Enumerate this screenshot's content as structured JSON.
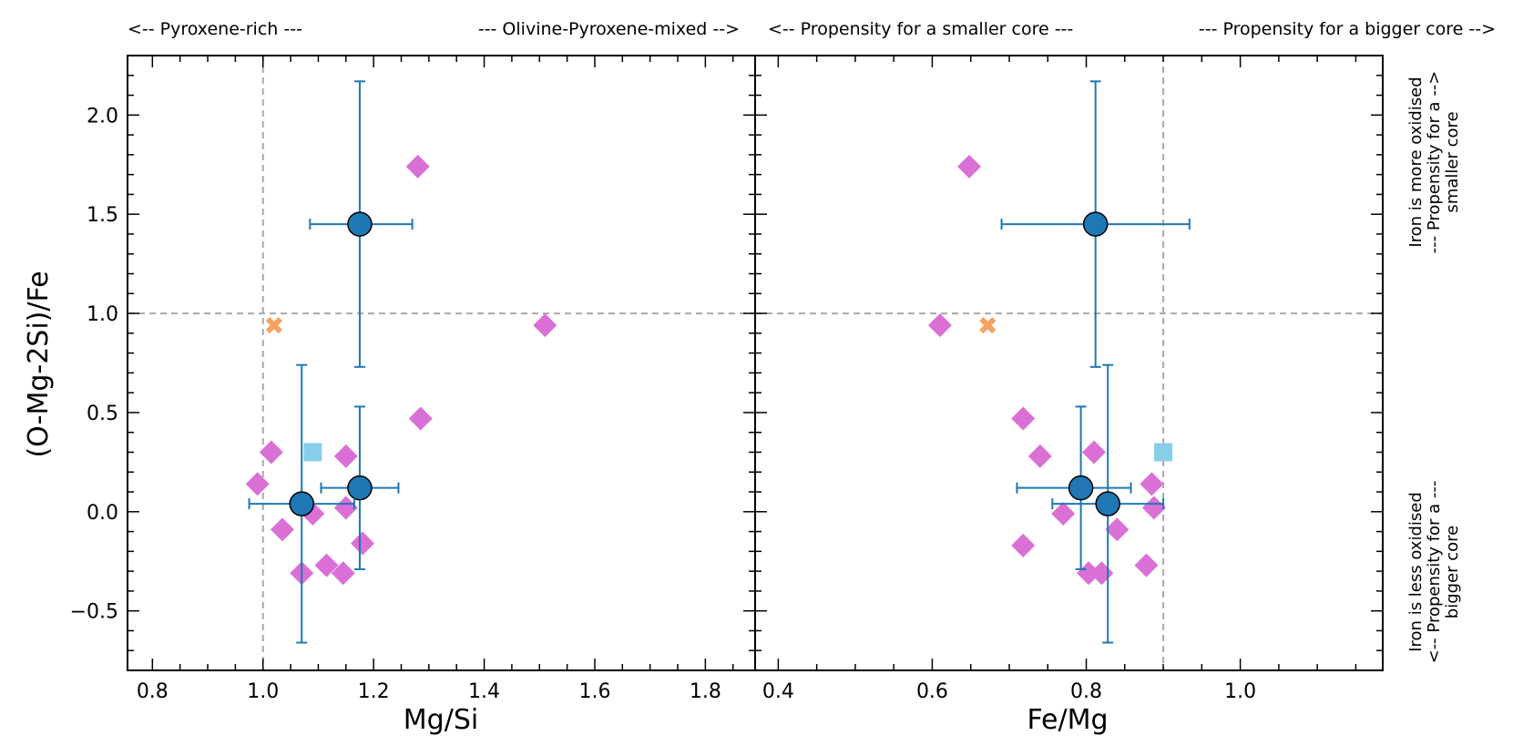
{
  "chart_data": [
    {
      "type": "scatter",
      "panel": "left",
      "xlabel": "Mg/Si",
      "ylabel": "(O-Mg-2Si)/Fe",
      "xlim": [
        0.755,
        1.89
      ],
      "ylim": [
        -0.8,
        2.3
      ],
      "xticks": [
        0.8,
        1.0,
        1.2,
        1.4,
        1.6,
        1.8
      ],
      "xticklabels": [
        "0.8",
        "1.0",
        "1.2",
        "1.4",
        "1.6",
        "1.8"
      ],
      "yticks": [
        -0.5,
        0.0,
        0.5,
        1.0,
        1.5,
        2.0
      ],
      "yticklabels": [
        "−0.5",
        "0.0",
        "0.5",
        "1.0",
        "1.5",
        "2.0"
      ],
      "ref_lines": {
        "x": 1.0,
        "y": 1.0
      },
      "top_annotations": [
        "<-- Pyroxene-rich ---",
        "--- Olivine-Pyroxene-mixed -->"
      ],
      "series": [
        {
          "name": "diamonds",
          "marker": "diamond",
          "color": "#da70d6",
          "points": [
            {
              "x": 1.28,
              "y": 1.74
            },
            {
              "x": 1.51,
              "y": 0.94
            },
            {
              "x": 1.285,
              "y": 0.47
            },
            {
              "x": 1.015,
              "y": 0.3
            },
            {
              "x": 1.15,
              "y": 0.28
            },
            {
              "x": 0.99,
              "y": 0.14
            },
            {
              "x": 1.15,
              "y": 0.02
            },
            {
              "x": 1.09,
              "y": -0.01
            },
            {
              "x": 1.035,
              "y": -0.09
            },
            {
              "x": 1.18,
              "y": -0.16
            },
            {
              "x": 1.115,
              "y": -0.27
            },
            {
              "x": 1.07,
              "y": -0.31
            },
            {
              "x": 1.145,
              "y": -0.31
            }
          ]
        },
        {
          "name": "cross",
          "marker": "x",
          "color": "#f4a460",
          "points": [
            {
              "x": 1.02,
              "y": 0.94
            }
          ]
        },
        {
          "name": "square",
          "marker": "square",
          "color": "#87ceeb",
          "points": [
            {
              "x": 1.09,
              "y": 0.3
            }
          ]
        },
        {
          "name": "circles",
          "marker": "circle",
          "color": "#1f77b4",
          "points": [
            {
              "x": 1.175,
              "y": 1.45,
              "xerr": [
                0.09,
                0.095
              ],
              "yerr": [
                0.72,
                0.72
              ]
            },
            {
              "x": 1.175,
              "y": 0.12,
              "xerr": [
                0.07,
                0.07
              ],
              "yerr": [
                0.41,
                0.41
              ]
            },
            {
              "x": 1.07,
              "y": 0.04,
              "xerr": [
                0.095,
                0.095
              ],
              "yerr": [
                0.7,
                0.7
              ]
            }
          ]
        }
      ]
    },
    {
      "type": "scatter",
      "panel": "right",
      "xlabel": "Fe/Mg",
      "xlim": [
        0.37,
        1.185
      ],
      "ylim": [
        -0.8,
        2.3
      ],
      "xticks": [
        0.4,
        0.6,
        0.8,
        1.0
      ],
      "xticklabels": [
        "0.4",
        "0.6",
        "0.8",
        "1.0"
      ],
      "ref_lines": {
        "x": 0.9,
        "y": 1.0
      },
      "top_annotations": [
        "<-- Propensity for a smaller core ---",
        "--- Propensity for a bigger core -->"
      ],
      "right_annotations": [
        [
          "Iron is more oxidised",
          "--- Propensity for a -->",
          "smaller core"
        ],
        [
          "Iron is less oxidised",
          "<-- Propensity for a ---",
          "bigger core"
        ]
      ],
      "series": [
        {
          "name": "diamonds",
          "marker": "diamond",
          "color": "#da70d6",
          "points": [
            {
              "x": 0.648,
              "y": 1.74
            },
            {
              "x": 0.61,
              "y": 0.94
            },
            {
              "x": 0.718,
              "y": 0.47
            },
            {
              "x": 0.81,
              "y": 0.3
            },
            {
              "x": 0.74,
              "y": 0.28
            },
            {
              "x": 0.885,
              "y": 0.14
            },
            {
              "x": 0.888,
              "y": 0.02
            },
            {
              "x": 0.77,
              "y": -0.01
            },
            {
              "x": 0.84,
              "y": -0.09
            },
            {
              "x": 0.718,
              "y": -0.17
            },
            {
              "x": 0.878,
              "y": -0.27
            },
            {
              "x": 0.803,
              "y": -0.31
            },
            {
              "x": 0.82,
              "y": -0.31
            }
          ]
        },
        {
          "name": "cross",
          "marker": "x",
          "color": "#f4a460",
          "points": [
            {
              "x": 0.672,
              "y": 0.94
            }
          ]
        },
        {
          "name": "square",
          "marker": "square",
          "color": "#87ceeb",
          "points": [
            {
              "x": 0.9,
              "y": 0.3
            }
          ]
        },
        {
          "name": "circles",
          "marker": "circle",
          "color": "#1f77b4",
          "points": [
            {
              "x": 0.812,
              "y": 1.45,
              "xerr": [
                0.122,
                0.122
              ],
              "yerr": [
                0.72,
                0.72
              ]
            },
            {
              "x": 0.793,
              "y": 0.12,
              "xerr": [
                0.083,
                0.065
              ],
              "yerr": [
                0.41,
                0.41
              ]
            },
            {
              "x": 0.828,
              "y": 0.04,
              "xerr": [
                0.072,
                0.072
              ],
              "yerr": [
                0.7,
                0.7
              ]
            }
          ]
        }
      ]
    }
  ]
}
